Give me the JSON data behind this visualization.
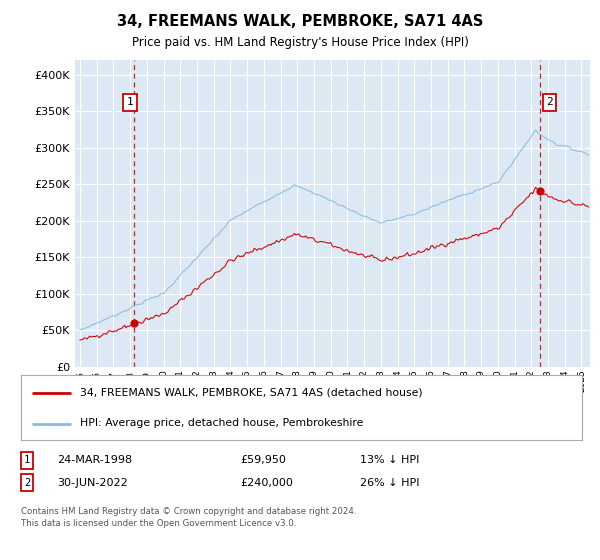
{
  "title": "34, FREEMANS WALK, PEMBROKE, SA71 4AS",
  "subtitle": "Price paid vs. HM Land Registry's House Price Index (HPI)",
  "legend_line1": "34, FREEMANS WALK, PEMBROKE, SA71 4AS (detached house)",
  "legend_line2": "HPI: Average price, detached house, Pembrokeshire",
  "annotation1_date": "24-MAR-1998",
  "annotation1_price": "£59,950",
  "annotation1_hpi": "13% ↓ HPI",
  "annotation1_year": 1998.23,
  "annotation1_value": 59950,
  "annotation2_date": "30-JUN-2022",
  "annotation2_price": "£240,000",
  "annotation2_hpi": "26% ↓ HPI",
  "annotation2_year": 2022.5,
  "annotation2_value": 240000,
  "hpi_color": "#88bbdd",
  "price_color": "#cc0000",
  "grid_color": "#ffffff",
  "plot_bg_color": "#dce9f5",
  "footer": "Contains HM Land Registry data © Crown copyright and database right 2024.\nThis data is licensed under the Open Government Licence v3.0.",
  "ylim": [
    0,
    420000
  ],
  "yticks": [
    0,
    50000,
    100000,
    150000,
    200000,
    250000,
    300000,
    350000,
    400000
  ],
  "xmin": 1994.7,
  "xmax": 2025.5
}
